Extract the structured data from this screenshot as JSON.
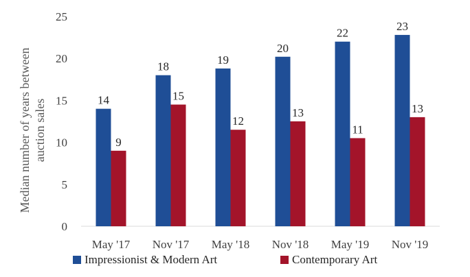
{
  "chart_data": {
    "type": "bar",
    "categories": [
      "May '17",
      "Nov '17",
      "May '18",
      "Nov '18",
      "May '19",
      "Nov '19"
    ],
    "series": [
      {
        "name": "Impressionist & Modern Art",
        "values": [
          14,
          18,
          18.8,
          20.2,
          22,
          22.8
        ],
        "labels": [
          "14",
          "18",
          "19",
          "20",
          "22",
          "23"
        ],
        "color": "#1F4E96"
      },
      {
        "name": "Contemporary Art",
        "values": [
          9,
          14.5,
          11.5,
          12.5,
          10.5,
          13
        ],
        "labels": [
          "9",
          "15",
          "12",
          "13",
          "11",
          "13"
        ],
        "color": "#A3142A"
      }
    ],
    "ylabel_lines": [
      "Median number of years between",
      "auction sales"
    ],
    "yticks": [
      "0",
      "5",
      "10",
      "15",
      "20",
      "25"
    ],
    "ylim": [
      0,
      25
    ],
    "grid": false,
    "legend_position": "bottom"
  }
}
